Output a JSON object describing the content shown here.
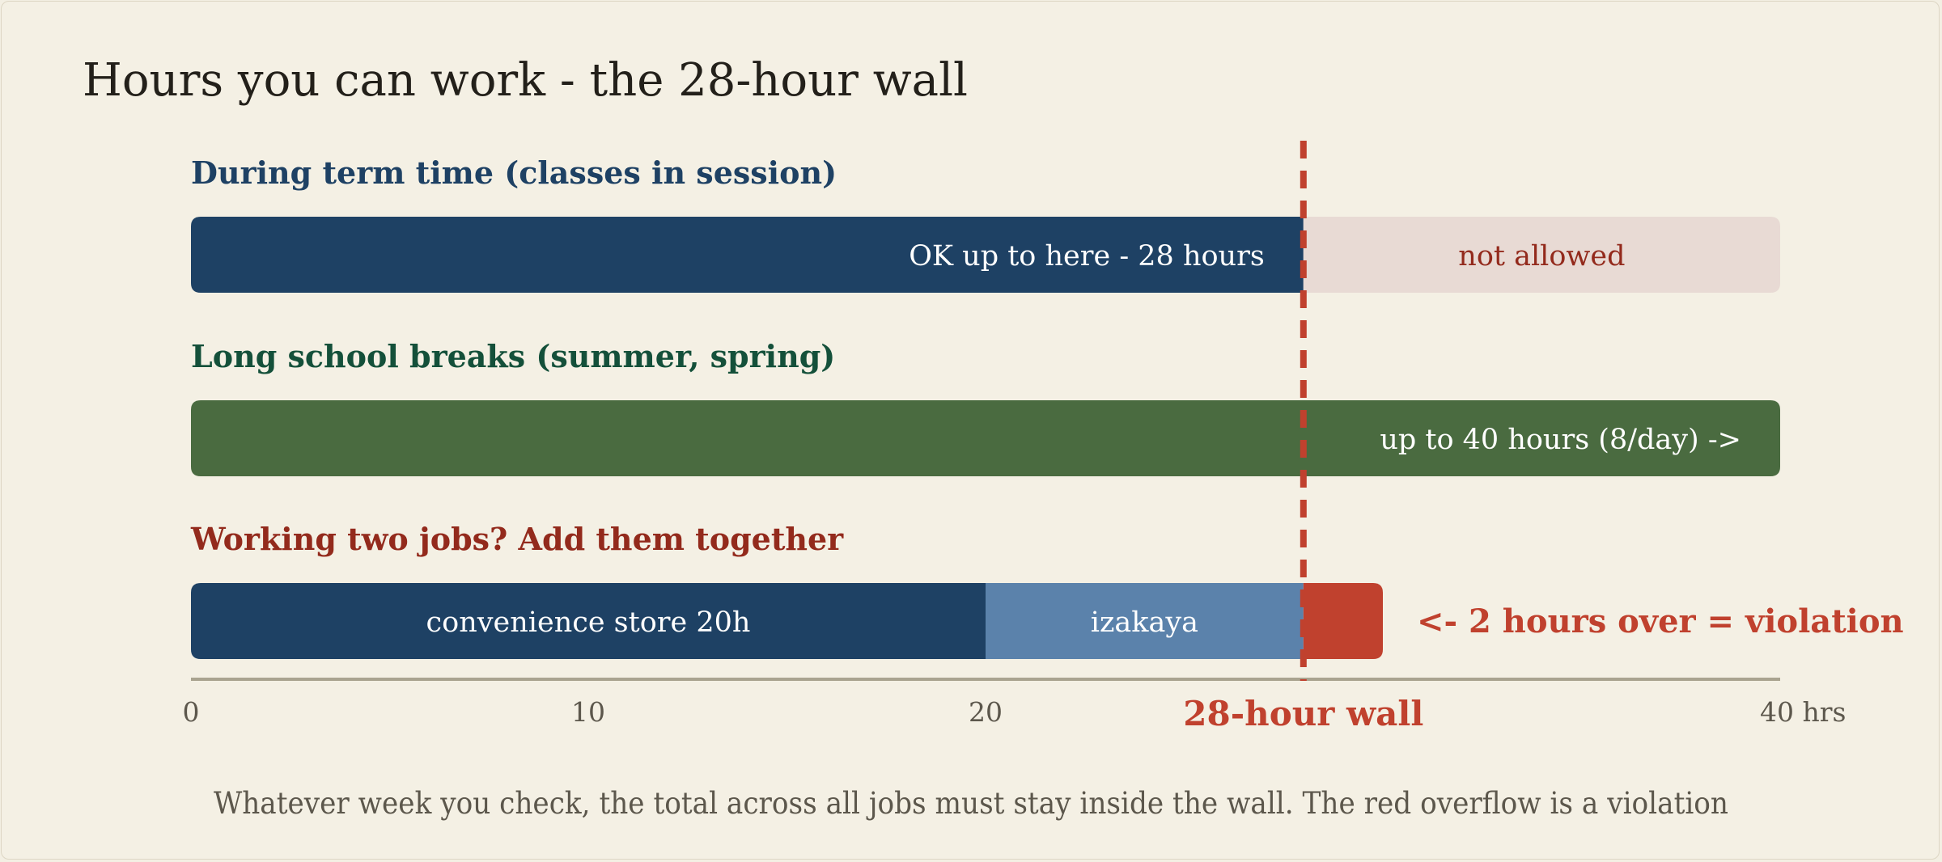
{
  "title": "Hours you can work - the 28-hour wall",
  "colors": {
    "background": "#f4f0e4",
    "navy": "#1e4164",
    "steel_blue": "#5b82ab",
    "green": "#4a6b40",
    "red": "#c0412e",
    "not_allowed_fill": "#e8dad4",
    "title_text": "#23201a",
    "term_heading": "#1e4164",
    "break_heading": "#14503a",
    "two_jobs_heading": "#932a1c",
    "axis": "#a9a38f",
    "tick_text": "#5c574c",
    "caption_text": "#5c574c"
  },
  "chart_data": {
    "type": "bar",
    "orientation": "horizontal",
    "stacked": true,
    "xlim": [
      0,
      40
    ],
    "x_ticks": [
      {
        "value": 0,
        "label": "0"
      },
      {
        "value": 10,
        "label": "10"
      },
      {
        "value": 20,
        "label": "20"
      },
      {
        "value": 40,
        "label": "40 hrs"
      }
    ],
    "threshold": {
      "value": 28,
      "label": "28-hour wall",
      "style": "dashed"
    },
    "rows": [
      {
        "heading": "During term time (classes in session)",
        "heading_color": "#1e4164",
        "segments": [
          {
            "start": 0,
            "end": 28,
            "label": "OK up to here - 28 hours",
            "color": "#1e4164",
            "text_color": "#ffffff",
            "align": "end"
          },
          {
            "start": 28,
            "end": 40,
            "label": "not allowed",
            "color": "#e8dad4",
            "text_color": "#932a1c",
            "align": "middle"
          }
        ]
      },
      {
        "heading": "Long school breaks (summer, spring)",
        "heading_color": "#14503a",
        "segments": [
          {
            "start": 0,
            "end": 40,
            "label": "up to 40 hours (8/day) ->",
            "color": "#4a6b40",
            "text_color": "#ffffff",
            "align": "end"
          }
        ]
      },
      {
        "heading": "Working two jobs? Add them together",
        "heading_color": "#932a1c",
        "segments": [
          {
            "start": 0,
            "end": 20,
            "label": "convenience store 20h",
            "color": "#1e4164",
            "text_color": "#ffffff",
            "align": "middle"
          },
          {
            "start": 20,
            "end": 28,
            "label": "izakaya",
            "color": "#5b82ab",
            "text_color": "#ffffff",
            "align": "middle"
          },
          {
            "start": 28,
            "end": 30,
            "label": "",
            "color": "#c0412e",
            "text_color": "#ffffff",
            "align": "middle"
          }
        ],
        "annotation": "<- 2 hours over = violation"
      }
    ]
  },
  "caption": "Whatever week you check, the total across all jobs must stay inside the wall. The red overflow is a violation"
}
